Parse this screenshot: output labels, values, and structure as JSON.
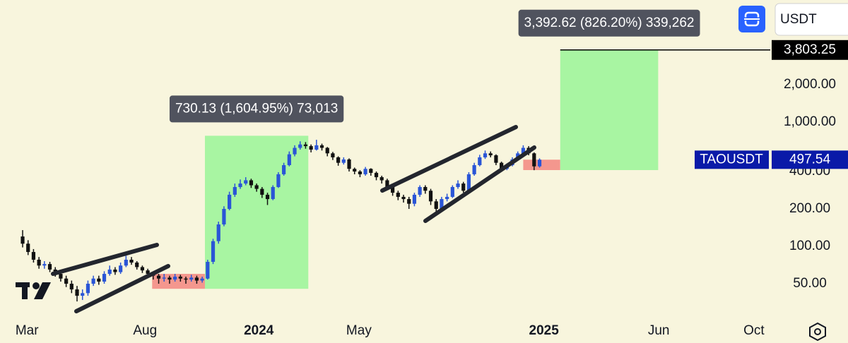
{
  "chart_data": {
    "type": "candlestick",
    "currency": "USDT",
    "log_scale": true,
    "ylim": [
      25,
      9600
    ],
    "yticks": [
      {
        "value": 50,
        "label": "50.00"
      },
      {
        "value": 100,
        "label": "100.00"
      },
      {
        "value": 200,
        "label": "200.00"
      },
      {
        "value": 400,
        "label": "400.00"
      },
      {
        "value": 1000,
        "label": "1,000.00"
      },
      {
        "value": 2000,
        "label": "2,000.00"
      }
    ],
    "xlim": [
      -4.16,
      137.4
    ],
    "xticks": [
      {
        "value": 0.8,
        "label": "Mar"
      },
      {
        "value": 22.5,
        "label": "Aug"
      },
      {
        "value": 43.4,
        "label": "2024"
      },
      {
        "value": 61.8,
        "label": "May"
      },
      {
        "value": 95.8,
        "label": "2025"
      },
      {
        "value": 116.9,
        "label": "Jun"
      },
      {
        "value": 134.4,
        "label": "Oct"
      }
    ],
    "series": [
      {
        "name": "TAOUSDT",
        "up_color": "#2a55d6",
        "down_color": "#111111",
        "open": [
          120,
          105,
          90,
          78,
          70,
          72,
          65,
          60,
          55,
          50,
          45,
          40,
          42,
          50,
          55,
          52,
          60,
          65,
          62,
          70,
          78,
          74,
          68,
          64,
          60,
          58,
          55,
          56,
          54,
          57,
          55,
          54,
          56,
          53,
          55,
          75,
          110,
          150,
          200,
          260,
          300,
          320,
          340,
          310,
          290,
          260,
          240,
          300,
          380,
          450,
          550,
          620,
          660,
          640,
          600,
          650,
          620,
          560,
          520,
          470,
          500,
          420,
          400,
          380,
          420,
          390,
          360,
          340,
          300,
          270,
          250,
          240,
          220,
          260,
          300,
          280,
          230,
          200,
          240,
          250,
          300,
          320,
          280,
          380,
          450,
          520,
          560,
          540,
          470,
          420,
          450,
          500,
          560,
          620,
          560,
          440
        ],
        "high": [
          135,
          112,
          95,
          82,
          76,
          75,
          68,
          63,
          58,
          53,
          48,
          45,
          53,
          58,
          58,
          63,
          70,
          68,
          74,
          84,
          82,
          76,
          70,
          66,
          62,
          60,
          60,
          58,
          60,
          59,
          57,
          59,
          58,
          57,
          78,
          115,
          158,
          210,
          275,
          320,
          345,
          360,
          350,
          320,
          300,
          270,
          310,
          395,
          470,
          580,
          650,
          700,
          690,
          660,
          720,
          670,
          630,
          575,
          530,
          520,
          510,
          430,
          410,
          435,
          425,
          400,
          370,
          350,
          310,
          280,
          260,
          250,
          270,
          310,
          310,
          290,
          240,
          250,
          265,
          310,
          340,
          330,
          395,
          470,
          545,
          590,
          580,
          550,
          480,
          465,
          520,
          580,
          650,
          640,
          570,
          510
        ],
        "low": [
          98,
          85,
          74,
          66,
          66,
          62,
          57,
          52,
          47,
          42,
          36,
          37,
          40,
          48,
          49,
          50,
          58,
          59,
          60,
          68,
          71,
          65,
          61,
          57,
          54,
          50,
          52,
          50,
          52,
          52,
          50,
          52,
          50,
          51,
          54,
          72,
          105,
          145,
          195,
          250,
          290,
          310,
          295,
          275,
          245,
          215,
          235,
          295,
          370,
          440,
          530,
          600,
          610,
          570,
          590,
          590,
          530,
          495,
          445,
          455,
          400,
          380,
          360,
          370,
          370,
          340,
          320,
          285,
          255,
          235,
          225,
          200,
          210,
          250,
          265,
          215,
          180,
          195,
          230,
          245,
          290,
          270,
          275,
          370,
          440,
          505,
          520,
          450,
          400,
          410,
          440,
          490,
          550,
          540,
          410,
          430
        ],
        "close": [
          105,
          90,
          78,
          70,
          72,
          65,
          60,
          55,
          50,
          45,
          40,
          42,
          50,
          55,
          52,
          60,
          65,
          62,
          70,
          78,
          74,
          68,
          64,
          60,
          58,
          55,
          56,
          54,
          57,
          55,
          54,
          56,
          53,
          55,
          75,
          110,
          150,
          200,
          260,
          300,
          320,
          340,
          310,
          290,
          260,
          240,
          300,
          380,
          450,
          550,
          620,
          660,
          640,
          600,
          650,
          620,
          560,
          520,
          470,
          500,
          420,
          400,
          380,
          420,
          390,
          360,
          340,
          300,
          270,
          250,
          240,
          220,
          260,
          300,
          280,
          230,
          200,
          240,
          250,
          300,
          320,
          280,
          380,
          450,
          520,
          560,
          540,
          470,
          420,
          450,
          500,
          560,
          620,
          560,
          440,
          497.54
        ]
      }
    ],
    "positions": [
      {
        "entry": 45.5,
        "stop": 60,
        "target": 775.6,
        "start": 23.8,
        "mid": 33.5,
        "end": 52.5,
        "label": "730.13 (1,604.95%) 73,013"
      },
      {
        "entry": 410.63,
        "stop": 498,
        "target": 3803.25,
        "target_label": "3,803.25",
        "start": 92,
        "mid": 98.8,
        "end": 116.8,
        "label": "3,392.62 (826.20%) 339,262"
      }
    ]
  }
}
